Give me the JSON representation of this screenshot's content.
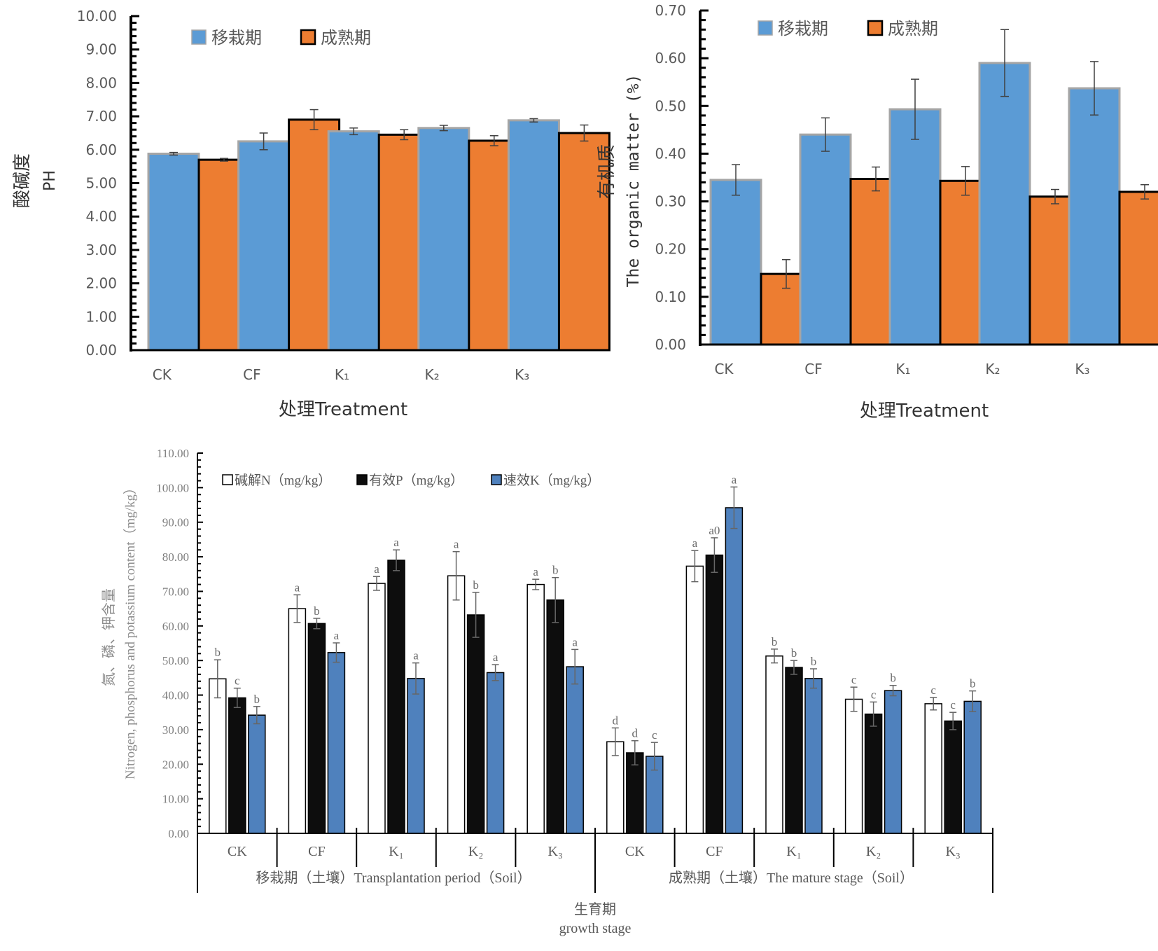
{
  "chart_data": [
    {
      "id": "ph",
      "type": "bar",
      "title": "",
      "ylabel_cn": "酸碱度",
      "ylabel_en": "PH",
      "xlabel": "处理Treatment",
      "ylim": [
        0,
        10
      ],
      "yticks": [
        "0.00",
        "1.00",
        "2.00",
        "3.00",
        "4.00",
        "5.00",
        "6.00",
        "7.00",
        "8.00",
        "9.00",
        "10.00"
      ],
      "categories": [
        "CK",
        "CF",
        "K₁",
        "K₂",
        "K₃"
      ],
      "legend_position": "top",
      "series": [
        {
          "name": "移栽期",
          "color": "#5B9BD5",
          "values": [
            5.88,
            6.25,
            6.55,
            6.65,
            6.88
          ],
          "errors": [
            0.04,
            0.25,
            0.1,
            0.08,
            0.05
          ]
        },
        {
          "name": "成熟期",
          "color": "#ED7D31",
          "values": [
            5.7,
            6.9,
            6.45,
            6.27,
            6.5
          ],
          "errors": [
            0.04,
            0.3,
            0.15,
            0.15,
            0.24
          ]
        }
      ]
    },
    {
      "id": "organic",
      "type": "bar",
      "title": "",
      "ylabel_cn": "有机质",
      "ylabel_en": "The organic matter (%)",
      "xlabel": "处理Treatment",
      "ylim": [
        0,
        0.7
      ],
      "yticks": [
        "0.00",
        "0.10",
        "0.20",
        "0.30",
        "0.40",
        "0.50",
        "0.60",
        "0.70"
      ],
      "categories": [
        "CK",
        "CF",
        "K₁",
        "K₂",
        "K₃"
      ],
      "legend_position": "top",
      "series": [
        {
          "name": "移栽期",
          "color": "#5B9BD5",
          "values": [
            0.345,
            0.44,
            0.493,
            0.59,
            0.537
          ],
          "errors": [
            0.032,
            0.035,
            0.063,
            0.07,
            0.056
          ]
        },
        {
          "name": "成熟期",
          "color": "#ED7D31",
          "values": [
            0.148,
            0.347,
            0.343,
            0.31,
            0.32
          ],
          "errors": [
            0.03,
            0.025,
            0.03,
            0.015,
            0.015
          ]
        }
      ]
    },
    {
      "id": "npk",
      "type": "bar",
      "title": "",
      "ylabel_cn": "氮、磷、钾含量",
      "ylabel_en": "Nitrogen, phosphorus and potassium content（mg/kg）",
      "xlabel_cn": "生育期",
      "xlabel_en": "growth stage",
      "ylim": [
        0,
        110
      ],
      "yticks": [
        "0.00",
        "10.00",
        "20.00",
        "30.00",
        "40.00",
        "50.00",
        "60.00",
        "70.00",
        "80.00",
        "90.00",
        "100.00",
        "110.00"
      ],
      "groups": [
        {
          "label": "移栽期（土壤）Transplantation period（Soil）",
          "categories": [
            "CK",
            "CF",
            "K₁",
            "K₂",
            "K₃"
          ]
        },
        {
          "label": "成熟期（土壤）The mature stage（Soil）",
          "categories": [
            "CK",
            "CF",
            "K₁",
            "K₂",
            "K₃"
          ]
        }
      ],
      "legend_position": "top-left",
      "series": [
        {
          "name": "碱解N（mg/kg）",
          "color": "#FFFFFF",
          "values": [
            44.7,
            65.0,
            72.3,
            74.5,
            72.0,
            26.5,
            77.3,
            51.3,
            38.8,
            37.5
          ],
          "errors": [
            5.5,
            4.0,
            2.0,
            7.0,
            1.5,
            4.0,
            4.5,
            2.0,
            3.5,
            1.8
          ],
          "letters": [
            "b",
            "a",
            "a",
            "a",
            "a",
            "d",
            "a",
            "b",
            "c",
            "c"
          ]
        },
        {
          "name": "有效P（mg/kg）",
          "color": "#0D0D0D",
          "values": [
            39.2,
            60.7,
            79.0,
            63.2,
            67.5,
            23.3,
            80.5,
            48.0,
            34.5,
            32.5
          ],
          "errors": [
            2.8,
            1.5,
            3.0,
            6.5,
            6.5,
            3.5,
            5.0,
            2.0,
            3.5,
            2.5
          ],
          "letters": [
            "c",
            "b",
            "a",
            "b",
            "b",
            "d",
            "a0",
            "b",
            "c",
            "c"
          ]
        },
        {
          "name": "速效K（mg/kg）",
          "color": "#4F81BD",
          "values": [
            34.2,
            52.3,
            44.8,
            46.5,
            48.2,
            22.3,
            94.2,
            44.8,
            41.3,
            38.2
          ],
          "errors": [
            2.5,
            2.8,
            4.5,
            2.3,
            5.0,
            4.0,
            6.0,
            2.8,
            1.5,
            3.0
          ],
          "letters": [
            "b",
            "a",
            "a",
            "a",
            "a",
            "c",
            "a",
            "b",
            "b",
            "b"
          ]
        }
      ]
    }
  ]
}
